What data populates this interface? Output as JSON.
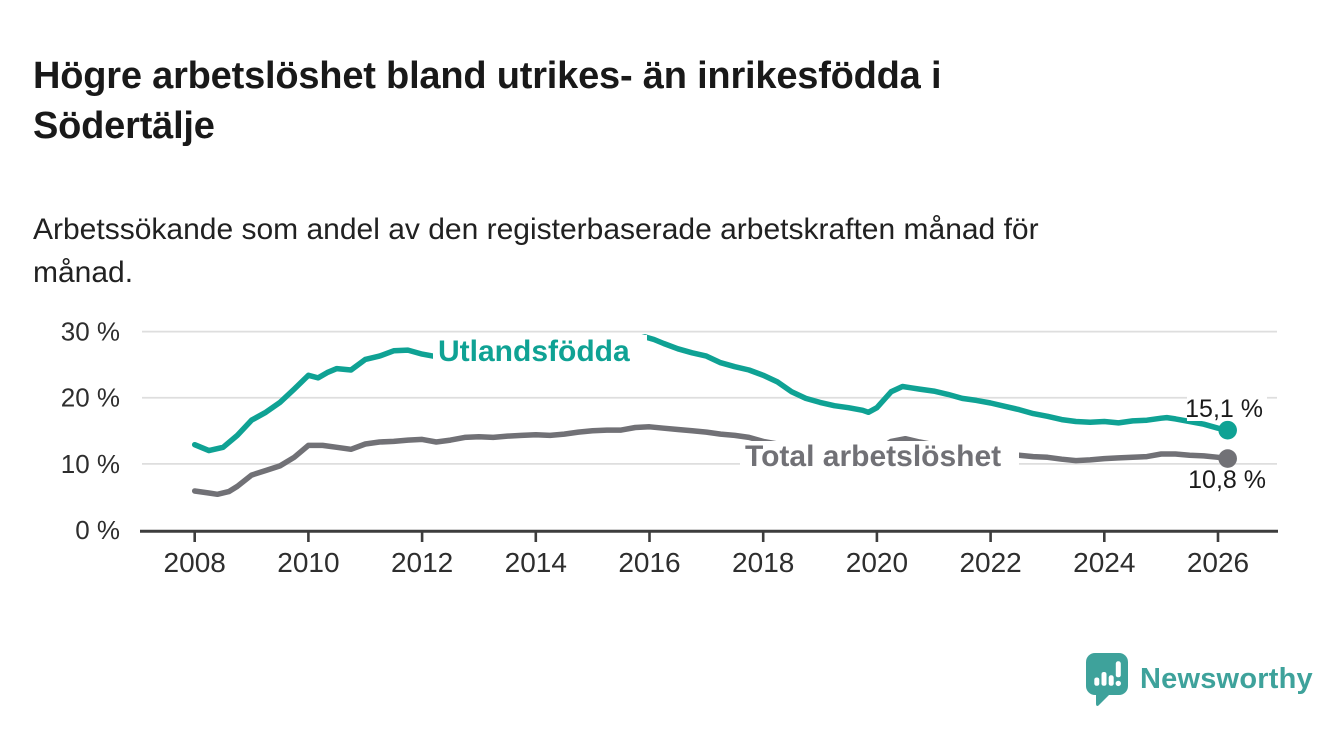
{
  "header": {
    "title_lines": [
      "Högre arbetslöshet bland utrikes- än inrikesfödda i",
      "Södertälje"
    ],
    "subtitle_lines": [
      "Arbetssökande som andel av den registerbaserade arbetskraften månad för",
      "månad."
    ]
  },
  "footer": {
    "brand": "Newsworthy"
  },
  "colors": {
    "accent_teal": "#0fa294",
    "series_gray": "#717176",
    "grid": "#dedede",
    "axis": "#3d3d3d",
    "text_dark": "#1a1a1a",
    "tick_text": "#2e2e2e",
    "logo_teal": "#3ea29b"
  },
  "chart_data": {
    "type": "line",
    "title": "Högre arbetslöshet bland utrikes- än inrikesfödda i Södertälje",
    "subtitle": "Arbetssökande som andel av den registerbaserade arbetskraften månad för månad.",
    "x_axis": {
      "tick_years": [
        2008,
        2010,
        2012,
        2014,
        2016,
        2018,
        2020,
        2022,
        2024,
        2026
      ],
      "tick_labels": [
        "2008",
        "2010",
        "2012",
        "2014",
        "2016",
        "2018",
        "2020",
        "2022",
        "2024",
        "2026"
      ],
      "range": [
        2008,
        2026.17
      ]
    },
    "y_axis": {
      "tick_values": [
        0,
        10,
        20,
        30
      ],
      "tick_labels": [
        "0 %",
        "10 %",
        "20 %",
        "30 %"
      ],
      "range": [
        0,
        31.5
      ],
      "grid": true
    },
    "legend_position": "inline-labels",
    "series": [
      {
        "name": "Utlandsfödda",
        "color": "#0fa294",
        "end_label": "15,1 %",
        "end_value": 15.1,
        "points": [
          [
            2008.0,
            12.9
          ],
          [
            2008.25,
            12.0
          ],
          [
            2008.5,
            12.5
          ],
          [
            2008.75,
            14.3
          ],
          [
            2009.0,
            16.6
          ],
          [
            2009.25,
            17.8
          ],
          [
            2009.5,
            19.3
          ],
          [
            2009.75,
            21.3
          ],
          [
            2010.0,
            23.4
          ],
          [
            2010.17,
            23.0
          ],
          [
            2010.33,
            23.8
          ],
          [
            2010.5,
            24.4
          ],
          [
            2010.75,
            24.2
          ],
          [
            2011.0,
            25.8
          ],
          [
            2011.25,
            26.3
          ],
          [
            2011.5,
            27.1
          ],
          [
            2011.75,
            27.2
          ],
          [
            2012.0,
            26.6
          ],
          [
            2012.25,
            26.2
          ],
          [
            2012.5,
            26.0
          ],
          [
            2012.75,
            25.8
          ],
          [
            2013.0,
            25.6
          ],
          [
            2013.25,
            25.5
          ],
          [
            2013.5,
            25.8
          ],
          [
            2013.75,
            26.0
          ],
          [
            2014.0,
            26.2
          ],
          [
            2014.25,
            26.4
          ],
          [
            2014.5,
            26.6
          ],
          [
            2014.75,
            27.0
          ],
          [
            2015.0,
            27.3
          ],
          [
            2015.25,
            27.7
          ],
          [
            2015.5,
            28.2
          ],
          [
            2015.75,
            28.8
          ],
          [
            2015.92,
            29.2
          ],
          [
            2016.08,
            28.8
          ],
          [
            2016.25,
            28.2
          ],
          [
            2016.5,
            27.4
          ],
          [
            2016.75,
            26.8
          ],
          [
            2017.0,
            26.3
          ],
          [
            2017.25,
            25.3
          ],
          [
            2017.5,
            24.7
          ],
          [
            2017.75,
            24.2
          ],
          [
            2018.0,
            23.4
          ],
          [
            2018.25,
            22.4
          ],
          [
            2018.5,
            20.9
          ],
          [
            2018.75,
            19.9
          ],
          [
            2019.0,
            19.3
          ],
          [
            2019.25,
            18.8
          ],
          [
            2019.5,
            18.5
          ],
          [
            2019.75,
            18.1
          ],
          [
            2019.85,
            17.8
          ],
          [
            2020.0,
            18.5
          ],
          [
            2020.25,
            20.9
          ],
          [
            2020.45,
            21.7
          ],
          [
            2020.6,
            21.5
          ],
          [
            2020.75,
            21.3
          ],
          [
            2021.0,
            21.0
          ],
          [
            2021.25,
            20.5
          ],
          [
            2021.5,
            19.9
          ],
          [
            2021.75,
            19.6
          ],
          [
            2022.0,
            19.2
          ],
          [
            2022.25,
            18.7
          ],
          [
            2022.5,
            18.2
          ],
          [
            2022.75,
            17.6
          ],
          [
            2023.0,
            17.2
          ],
          [
            2023.25,
            16.7
          ],
          [
            2023.5,
            16.4
          ],
          [
            2023.75,
            16.3
          ],
          [
            2024.0,
            16.4
          ],
          [
            2024.25,
            16.2
          ],
          [
            2024.5,
            16.5
          ],
          [
            2024.75,
            16.6
          ],
          [
            2025.0,
            16.9
          ],
          [
            2025.1,
            17.0
          ],
          [
            2025.25,
            16.8
          ],
          [
            2025.5,
            16.4
          ],
          [
            2025.75,
            16.0
          ],
          [
            2026.0,
            15.4
          ],
          [
            2026.17,
            15.1
          ]
        ]
      },
      {
        "name": "Total arbetslöshet",
        "color": "#717176",
        "end_label": "10,8 %",
        "end_value": 10.8,
        "points": [
          [
            2008.0,
            5.9
          ],
          [
            2008.25,
            5.6
          ],
          [
            2008.4,
            5.4
          ],
          [
            2008.6,
            5.8
          ],
          [
            2008.75,
            6.6
          ],
          [
            2009.0,
            8.3
          ],
          [
            2009.25,
            9.0
          ],
          [
            2009.5,
            9.7
          ],
          [
            2009.75,
            11.0
          ],
          [
            2010.0,
            12.8
          ],
          [
            2010.25,
            12.8
          ],
          [
            2010.5,
            12.5
          ],
          [
            2010.75,
            12.2
          ],
          [
            2011.0,
            13.0
          ],
          [
            2011.25,
            13.3
          ],
          [
            2011.5,
            13.4
          ],
          [
            2011.75,
            13.6
          ],
          [
            2012.0,
            13.7
          ],
          [
            2012.25,
            13.3
          ],
          [
            2012.5,
            13.6
          ],
          [
            2012.75,
            14.0
          ],
          [
            2013.0,
            14.1
          ],
          [
            2013.25,
            14.0
          ],
          [
            2013.5,
            14.2
          ],
          [
            2013.75,
            14.3
          ],
          [
            2014.0,
            14.4
          ],
          [
            2014.25,
            14.3
          ],
          [
            2014.5,
            14.5
          ],
          [
            2014.75,
            14.8
          ],
          [
            2015.0,
            15.0
          ],
          [
            2015.25,
            15.1
          ],
          [
            2015.5,
            15.1
          ],
          [
            2015.75,
            15.5
          ],
          [
            2016.0,
            15.6
          ],
          [
            2016.25,
            15.4
          ],
          [
            2016.5,
            15.2
          ],
          [
            2016.75,
            15.0
          ],
          [
            2017.0,
            14.8
          ],
          [
            2017.25,
            14.5
          ],
          [
            2017.5,
            14.3
          ],
          [
            2017.75,
            14.0
          ],
          [
            2018.0,
            13.4
          ],
          [
            2018.25,
            13.0
          ],
          [
            2018.5,
            12.5
          ],
          [
            2018.75,
            12.1
          ],
          [
            2019.0,
            11.8
          ],
          [
            2019.25,
            11.6
          ],
          [
            2019.5,
            11.5
          ],
          [
            2019.75,
            11.6
          ],
          [
            2020.0,
            12.0
          ],
          [
            2020.25,
            13.4
          ],
          [
            2020.5,
            13.8
          ],
          [
            2020.75,
            13.3
          ],
          [
            2021.0,
            12.9
          ],
          [
            2021.25,
            12.5
          ],
          [
            2021.5,
            12.1
          ],
          [
            2021.75,
            11.8
          ],
          [
            2022.0,
            11.6
          ],
          [
            2022.25,
            11.4
          ],
          [
            2022.5,
            11.3
          ],
          [
            2022.75,
            11.1
          ],
          [
            2023.0,
            11.0
          ],
          [
            2023.25,
            10.7
          ],
          [
            2023.5,
            10.5
          ],
          [
            2023.75,
            10.6
          ],
          [
            2024.0,
            10.8
          ],
          [
            2024.25,
            10.9
          ],
          [
            2024.5,
            11.0
          ],
          [
            2024.75,
            11.1
          ],
          [
            2025.0,
            11.5
          ],
          [
            2025.25,
            11.5
          ],
          [
            2025.5,
            11.3
          ],
          [
            2025.75,
            11.2
          ],
          [
            2026.0,
            11.0
          ],
          [
            2026.17,
            10.8
          ]
        ]
      }
    ]
  }
}
